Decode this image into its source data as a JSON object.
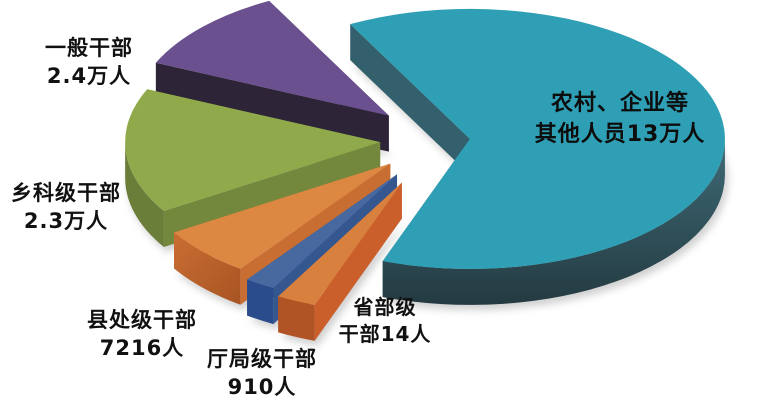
{
  "chart_data": {
    "type": "pie",
    "title": "",
    "unit": "人",
    "style": "3d-exploded",
    "background": "#ffffff",
    "label_color": "#111111",
    "slices": [
      {
        "key": "nongcun",
        "label": "农村、企业等其他人员",
        "value": 130000,
        "display": "13万人",
        "color": "#2E9FB4",
        "side_color": "#2C4B54",
        "edge_color": "#33606C"
      },
      {
        "key": "yiban",
        "label": "一般干部",
        "value": 24000,
        "display": "2.4万人",
        "color": "#6B5090",
        "side_color": "#2A2133",
        "edge_color": "#2E2438"
      },
      {
        "key": "xiangke",
        "label": "乡科级干部",
        "value": 23000,
        "display": "2.3万人",
        "color": "#8FA94B",
        "side_color": "#6A7D39",
        "edge_color": "#74883D"
      },
      {
        "key": "xianchu",
        "label": "县处级干部",
        "value": 7216,
        "display": "7216人",
        "color": "#DC8843",
        "side_color": "#A85423",
        "edge_color": "#C96E33"
      },
      {
        "key": "tingju",
        "label": "厅局级干部",
        "value": 910,
        "display": "910人",
        "color": "#47699F",
        "side_color": "#2B4C8C",
        "edge_color": "#35578F"
      },
      {
        "key": "shengbu",
        "label": "省部级干部",
        "value": 14,
        "display": "14人",
        "color": "#D8813F",
        "side_color": "#B05425",
        "edge_color": "#CA5F2B"
      }
    ]
  },
  "labels": {
    "nongcun": {
      "line1": "农村、企业等",
      "line2": "其他人员13万人"
    },
    "yiban": {
      "line1": "一般干部",
      "line2": "2.4万人"
    },
    "xiangke": {
      "line1": "乡科级干部",
      "line2": "2.3万人"
    },
    "xianchu": {
      "line1": "县处级干部",
      "line2": "7216人"
    },
    "tingju": {
      "line1": "厅局级干部",
      "line2": "910人"
    },
    "shengbu": {
      "line1": "省部级",
      "line2": "干部14人"
    }
  }
}
